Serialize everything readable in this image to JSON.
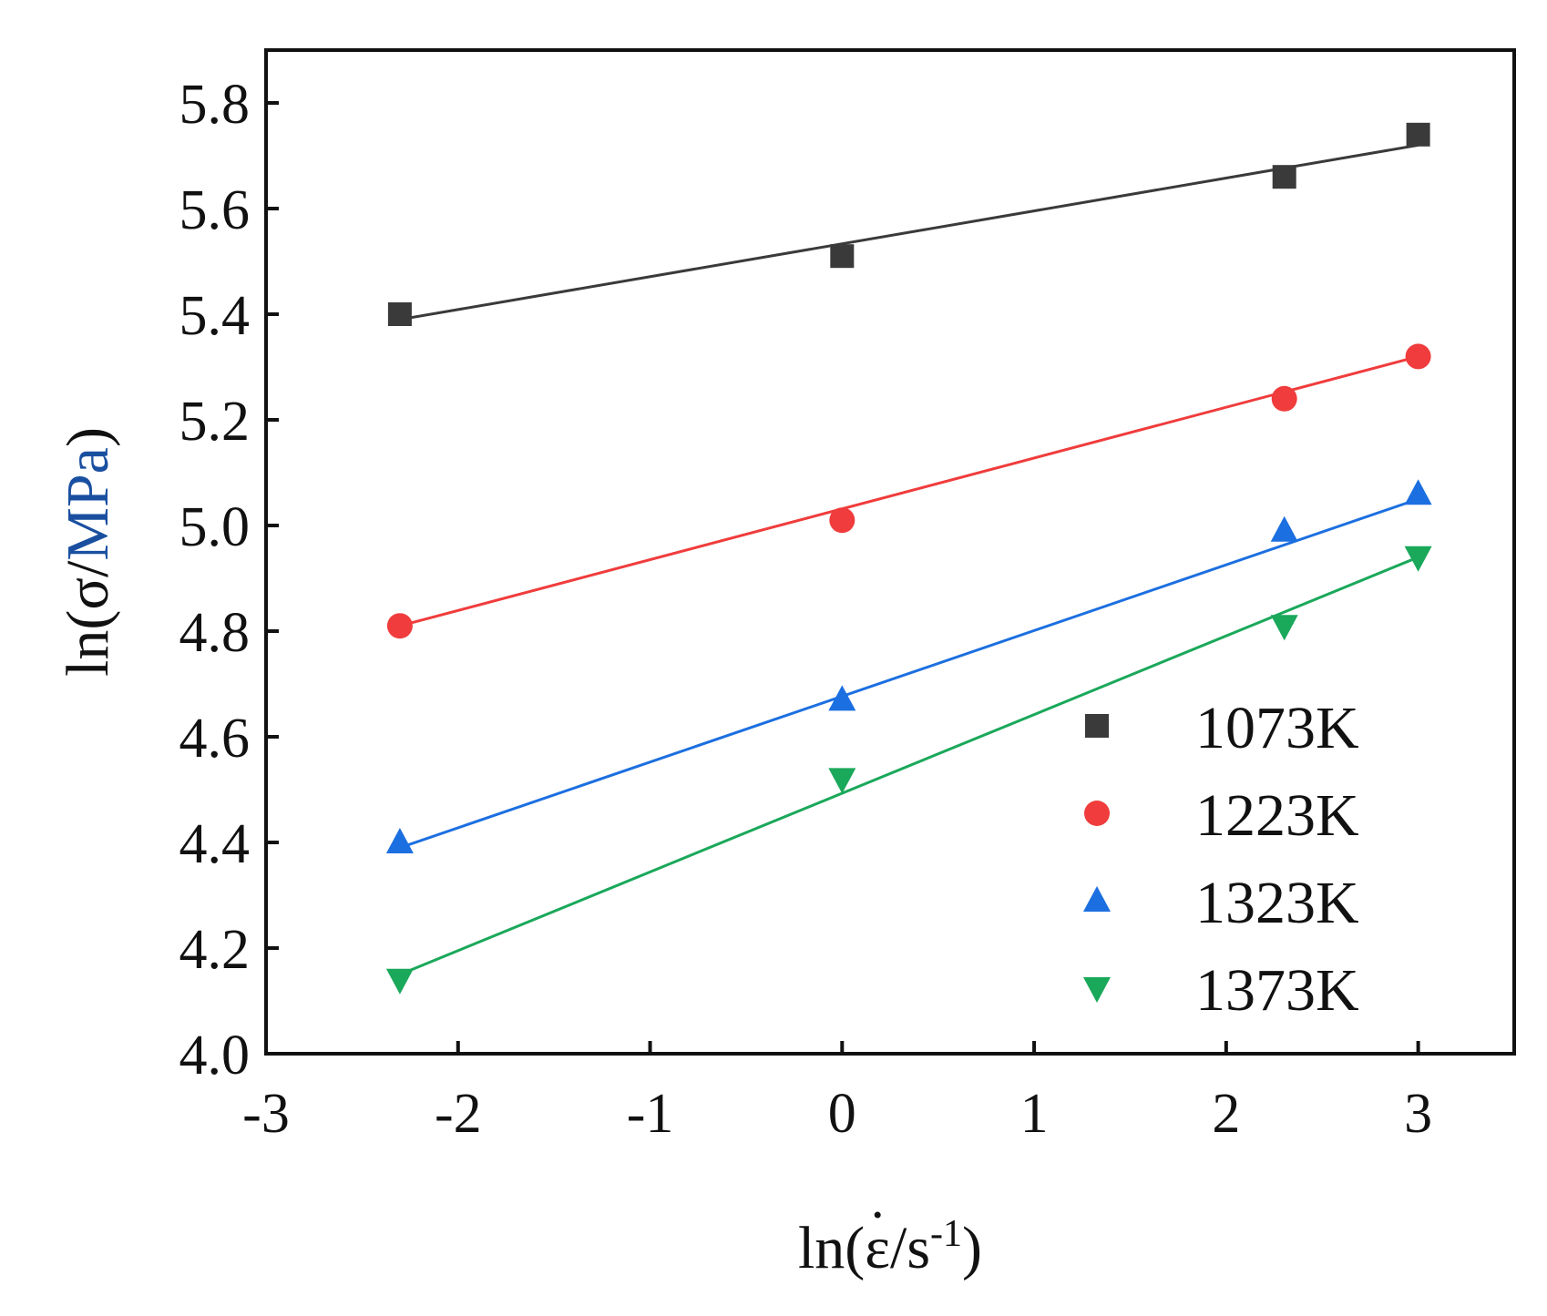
{
  "chart_data": {
    "type": "scatter",
    "title": "",
    "xlabel": "ln(ε̇/s-1)",
    "xlabel_parts": {
      "prefix": "ln(",
      "symbol": "ε",
      "middle": "/s",
      "sup": "-1",
      "suffix": ")"
    },
    "ylabel": "ln(σ/MPa)",
    "ylabel_parts": {
      "prefix": "ln(σ/",
      "unit": "MPa",
      "suffix": ")"
    },
    "xlim": [
      -3,
      3.5
    ],
    "ylim": [
      4.0,
      5.9
    ],
    "xticks": [
      -3,
      -2,
      -1,
      0,
      1,
      2,
      3
    ],
    "xtick_labels": [
      "-3",
      "-2",
      "-1",
      "0",
      "1",
      "2",
      "3"
    ],
    "yticks": [
      4.0,
      4.2,
      4.4,
      4.6,
      4.8,
      5.0,
      5.2,
      5.4,
      5.6,
      5.8
    ],
    "ytick_labels": [
      "4.0",
      "4.2",
      "4.4",
      "4.6",
      "4.8",
      "5.0",
      "5.2",
      "5.4",
      "5.6",
      "5.8"
    ],
    "grid": false,
    "legend_position": "bottom-right",
    "x": [
      -2.303,
      0,
      2.303,
      3.0
    ],
    "series": [
      {
        "name": "1073K",
        "marker": "square",
        "color": "#3a3a3a",
        "values": [
          5.4,
          5.51,
          5.66,
          5.74
        ],
        "fit": {
          "x": [
            -2.303,
            3.0
          ],
          "y": [
            5.39,
            5.72
          ]
        }
      },
      {
        "name": "1223K",
        "marker": "circle",
        "color": "#f03c3c",
        "values": [
          4.81,
          5.01,
          5.24,
          5.32
        ],
        "fit": {
          "x": [
            -2.303,
            3.0
          ],
          "y": [
            4.81,
            5.32
          ]
        }
      },
      {
        "name": "1323K",
        "marker": "triangle-up",
        "color": "#1c6fe0",
        "values": [
          4.4,
          4.67,
          4.99,
          5.06
        ],
        "fit": {
          "x": [
            -2.303,
            3.0
          ],
          "y": [
            4.39,
            5.05
          ]
        }
      },
      {
        "name": "1373K",
        "marker": "triangle-down",
        "color": "#1aa85a",
        "values": [
          4.14,
          4.52,
          4.81,
          4.94
        ],
        "fit": {
          "x": [
            -2.303,
            3.0
          ],
          "y": [
            4.15,
            4.94
          ]
        }
      }
    ]
  }
}
